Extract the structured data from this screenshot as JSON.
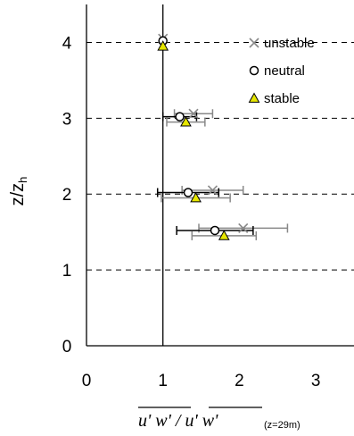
{
  "chart_data": {
    "type": "scatter",
    "xlabel": "u' w' / u' w'",
    "xlabel_subscript": "(z=29m)",
    "ylabel": "z/z",
    "ylabel_subscript": "h",
    "xlim": [
      0,
      3.5
    ],
    "ylim": [
      0,
      4.5
    ],
    "x_ticks": [
      "0",
      "1",
      "2",
      "3"
    ],
    "y_ticks": [
      "0",
      "1",
      "2",
      "3",
      "4"
    ],
    "grid": "dashed horizontal at y ticks",
    "reference_line_x": 1,
    "legend_position": "top-right",
    "series": [
      {
        "name": "unstable",
        "marker": "x",
        "color": "#888888",
        "points": [
          {
            "x": 1.0,
            "y": 4.05,
            "err": 0.0
          },
          {
            "x": 1.4,
            "y": 3.06,
            "err": 0.25
          },
          {
            "x": 1.65,
            "y": 2.05,
            "err": 0.4
          },
          {
            "x": 2.05,
            "y": 1.55,
            "err": 0.58
          }
        ]
      },
      {
        "name": "neutral",
        "marker": "circle",
        "color": "#000000",
        "points": [
          {
            "x": 1.0,
            "y": 4.02,
            "err": 0.0
          },
          {
            "x": 1.22,
            "y": 3.02,
            "err": 0.22
          },
          {
            "x": 1.33,
            "y": 2.02,
            "err": 0.4
          },
          {
            "x": 1.68,
            "y": 1.52,
            "err": 0.5
          }
        ]
      },
      {
        "name": "stable",
        "marker": "triangle",
        "color": "#e6e600",
        "points": [
          {
            "x": 1.0,
            "y": 3.95,
            "err": 0.0
          },
          {
            "x": 1.3,
            "y": 2.95,
            "err": 0.25
          },
          {
            "x": 1.43,
            "y": 1.95,
            "err": 0.45
          },
          {
            "x": 1.8,
            "y": 1.45,
            "err": 0.42
          }
        ]
      }
    ]
  }
}
